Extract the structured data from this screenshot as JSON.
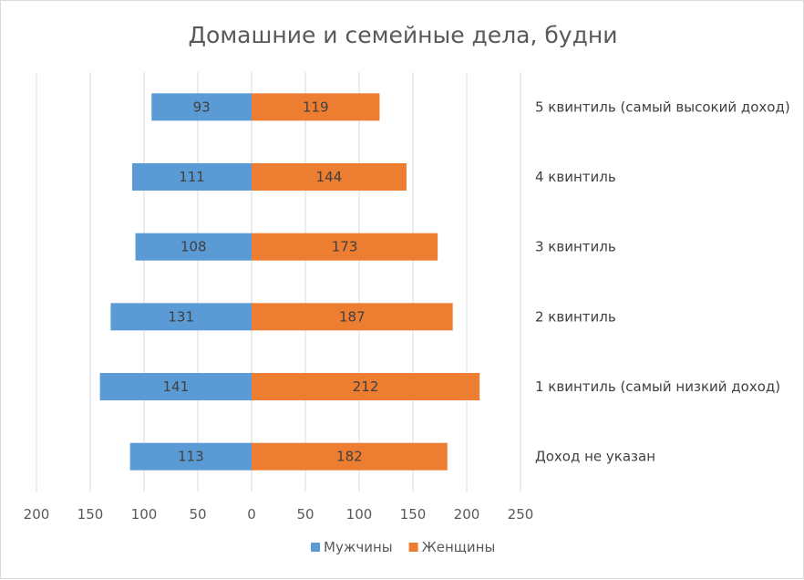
{
  "chart_data": {
    "type": "bar",
    "orientation": "horizontal",
    "title": "Домашние и семейные дела, будни",
    "categories": [
      "5 квинтиль (самый высокий доход)",
      "4 квинтиль",
      "3 квинтиль",
      "2 квинтиль",
      "1 квинтиль (самый низкий доход)",
      "Доход не указан"
    ],
    "series": [
      {
        "name": "Мужчины",
        "color": "#5b9bd5",
        "direction": "left",
        "values": [
          93,
          111,
          108,
          131,
          141,
          113
        ]
      },
      {
        "name": "Женщины",
        "color": "#ed7d31",
        "direction": "right",
        "values": [
          119,
          144,
          173,
          187,
          212,
          182
        ]
      }
    ],
    "xlim": [
      -200,
      250
    ],
    "x_ticks": [
      -200,
      -150,
      -100,
      -50,
      0,
      50,
      100,
      150,
      200,
      250
    ],
    "x_tick_labels": [
      "200",
      "150",
      "100",
      "50",
      "0",
      "50",
      "100",
      "150",
      "200",
      "250"
    ],
    "grid": true,
    "legend": "bottom",
    "data_labels": true
  }
}
